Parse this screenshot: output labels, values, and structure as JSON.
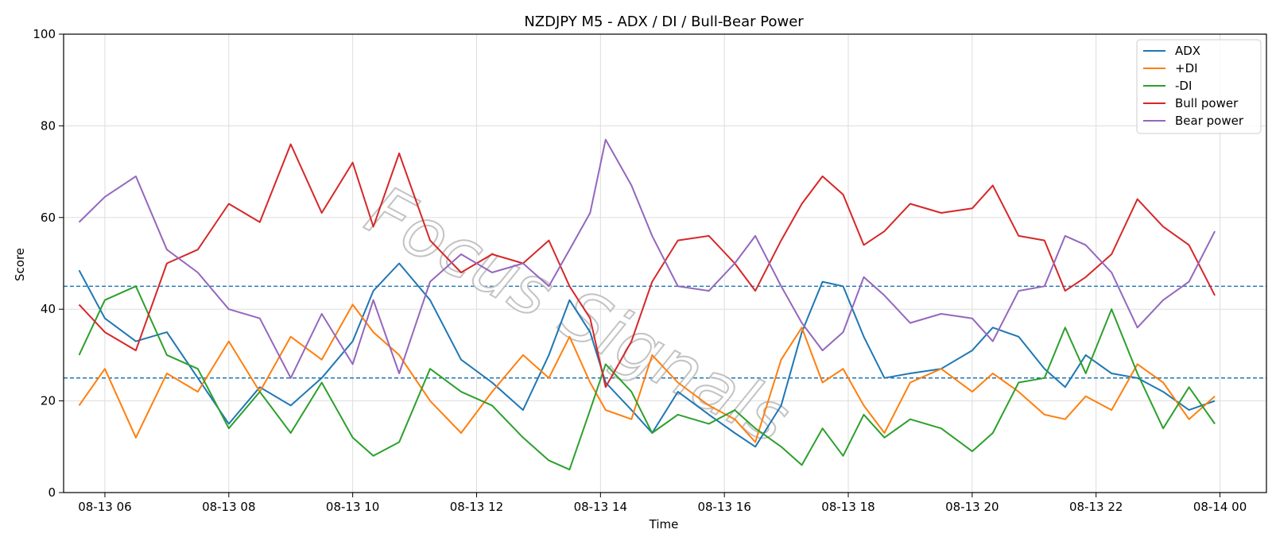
{
  "chart_data": {
    "type": "line",
    "title": "NZDJPY M5 - ADX / DI / Bull-Bear Power",
    "xlabel": "Time",
    "ylabel": "Score",
    "ylim": [
      0,
      100
    ],
    "xlim": [
      "08-13 05:20",
      "08-14 00:45"
    ],
    "x_ticks": [
      "08-13 06",
      "08-13 08",
      "08-13 10",
      "08-13 12",
      "08-13 14",
      "08-13 16",
      "08-13 18",
      "08-13 20",
      "08-13 22",
      "08-14 00"
    ],
    "y_ticks": [
      0,
      20,
      40,
      60,
      80,
      100
    ],
    "grid": true,
    "legend_position": "top-right",
    "reference_lines": [
      25,
      45
    ],
    "watermark": "Focus Signals",
    "x": [
      "05:35",
      "06:00",
      "06:30",
      "07:00",
      "07:30",
      "08:00",
      "08:30",
      "09:00",
      "09:30",
      "10:00",
      "10:20",
      "10:45",
      "11:15",
      "11:45",
      "12:15",
      "12:45",
      "13:10",
      "13:30",
      "13:50",
      "14:05",
      "14:30",
      "14:50",
      "15:15",
      "15:45",
      "16:10",
      "16:30",
      "16:55",
      "17:15",
      "17:35",
      "17:55",
      "18:15",
      "18:35",
      "19:00",
      "19:30",
      "20:00",
      "20:20",
      "20:45",
      "21:10",
      "21:30",
      "21:50",
      "22:15",
      "22:40",
      "23:05",
      "23:30",
      "23:55"
    ],
    "series": [
      {
        "name": "ADX",
        "color": "#1f77b4",
        "values": [
          48.5,
          38,
          33,
          35,
          25,
          15,
          23,
          19,
          25,
          33,
          44,
          50,
          42,
          29,
          24,
          18,
          30,
          42,
          35,
          24,
          18,
          13,
          22,
          17,
          13,
          10,
          19,
          35,
          46,
          45,
          34,
          25,
          26,
          27,
          31,
          36,
          34,
          27,
          23,
          30,
          26,
          25,
          22,
          18,
          20
        ]
      },
      {
        "name": "+DI",
        "color": "#ff7f0e",
        "values": [
          19,
          27,
          12,
          26,
          22,
          33,
          22,
          34,
          29,
          41,
          35,
          30,
          20,
          13,
          22,
          30,
          25,
          34,
          24,
          18,
          16,
          30,
          24,
          19,
          16,
          11,
          29,
          36,
          24,
          27,
          19,
          13,
          24,
          27,
          22,
          26,
          22,
          17,
          16,
          21,
          18,
          28,
          24,
          16,
          21
        ]
      },
      {
        "name": "-DI",
        "color": "#2ca02c",
        "values": [
          30,
          42,
          45,
          30,
          27,
          14,
          22,
          13,
          24,
          12,
          8,
          11,
          27,
          22,
          19,
          12,
          7,
          5,
          18,
          28,
          22,
          13,
          17,
          15,
          18,
          14,
          10,
          6,
          14,
          8,
          17,
          12,
          16,
          14,
          9,
          13,
          24,
          25,
          36,
          26,
          40,
          26,
          14,
          23,
          15
        ]
      },
      {
        "name": "Bull power",
        "color": "#d62728",
        "values": [
          41,
          35,
          31,
          50,
          53,
          63,
          59,
          76,
          61,
          72,
          58,
          74,
          55,
          48,
          52,
          50,
          55,
          45,
          38,
          23,
          33,
          46,
          55,
          56,
          50,
          44,
          55,
          63,
          69,
          65,
          54,
          57,
          63,
          61,
          62,
          67,
          56,
          55,
          44,
          47,
          52,
          64,
          58,
          54,
          43
        ]
      },
      {
        "name": "Bear power",
        "color": "#9467bd",
        "values": [
          59,
          64.5,
          69,
          53,
          48,
          40,
          38,
          25,
          39,
          28,
          42,
          26,
          46,
          52,
          48,
          50,
          45,
          53,
          61,
          77,
          67,
          56,
          45,
          44,
          50,
          56,
          45,
          37,
          31,
          35,
          47,
          43,
          37,
          39,
          38,
          33,
          44,
          45,
          56,
          54,
          48,
          36,
          42,
          46,
          57
        ]
      }
    ]
  }
}
